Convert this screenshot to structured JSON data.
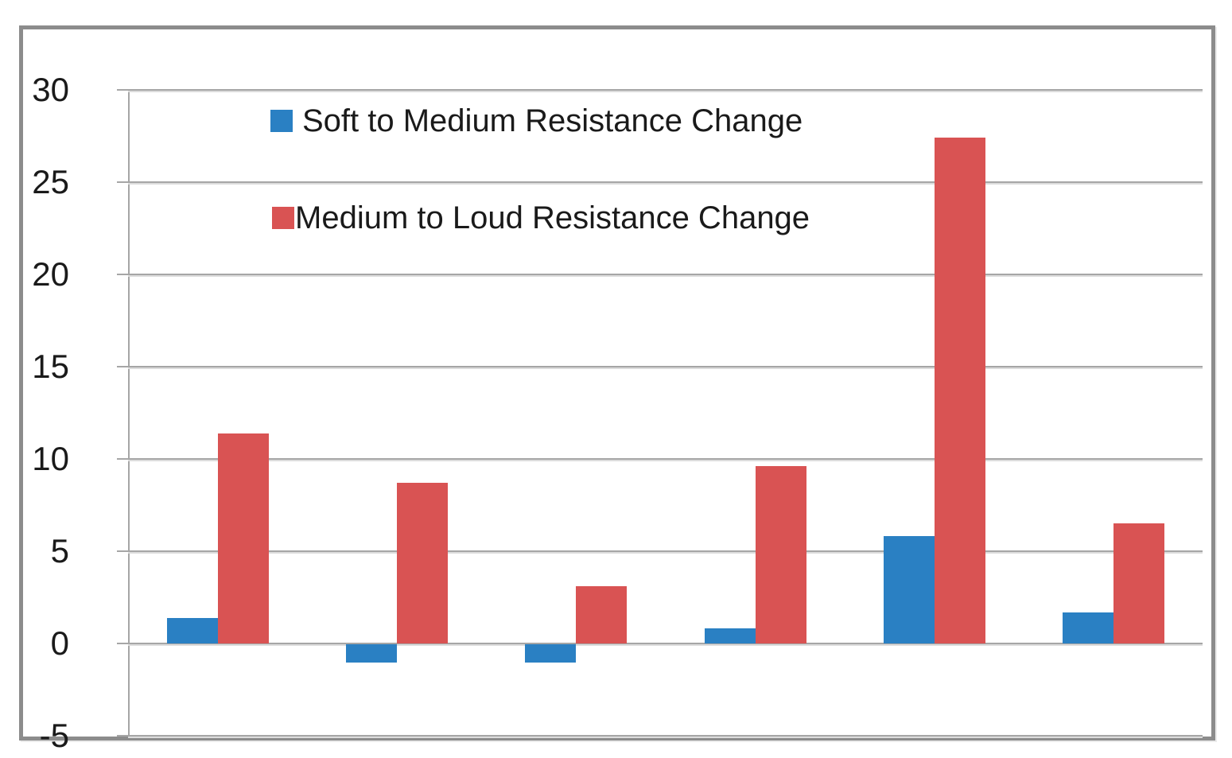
{
  "chart_data": {
    "type": "bar",
    "title": "",
    "xlabel": "",
    "ylabel": "",
    "categories": [
      "",
      "",
      "",
      "",
      "",
      ""
    ],
    "series": [
      {
        "name": "Soft to Medium Resistance Change",
        "color": "#2a80c3",
        "values": [
          1.4,
          -1.0,
          -1.0,
          0.8,
          5.8,
          1.7
        ]
      },
      {
        "name": "Medium to Loud Resistance Change",
        "color": "#d95353",
        "values": [
          11.4,
          8.7,
          3.1,
          9.6,
          27.4,
          6.5
        ]
      }
    ],
    "ylim": [
      -5,
      30
    ],
    "ytick_step": 5,
    "yticks": [
      30,
      25,
      20,
      15,
      10,
      5,
      0,
      -5
    ],
    "ytick_labels": [
      "30",
      "25",
      "20",
      "15",
      "10",
      "5",
      "0",
      "-5"
    ],
    "grid": true,
    "legend_position": "inside top-left, stacked vertically"
  },
  "legend": {
    "items": [
      {
        "label": "Soft to Medium Resistance Change",
        "color": "#2a80c3"
      },
      {
        "label": "Medium to Loud Resistance Change",
        "color": "#d95353"
      }
    ]
  },
  "colors": {
    "series_blue": "#2a80c3",
    "series_red": "#d95353",
    "gridline": "#a6a6a6",
    "frame_border": "#8c8c8c",
    "text": "#1a1a1a",
    "background": "#ffffff"
  }
}
